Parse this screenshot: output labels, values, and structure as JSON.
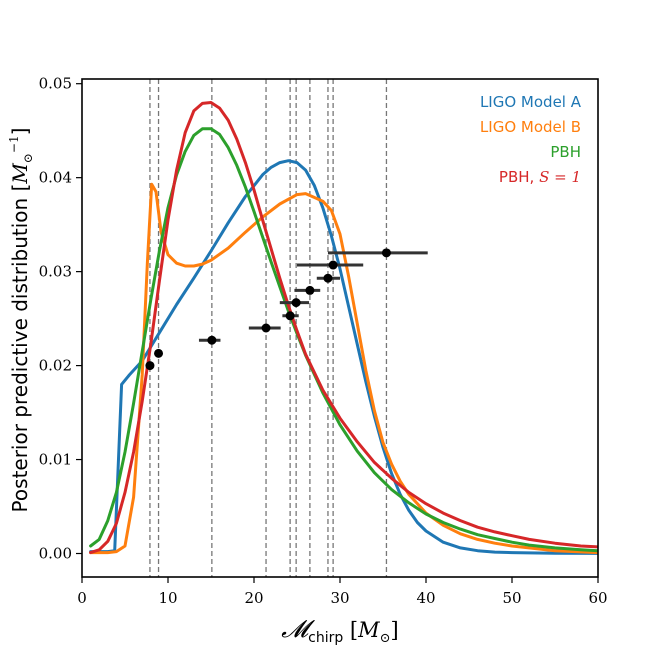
{
  "chart_data": {
    "type": "line",
    "xlabel": "𝓜chirp [M⊙]",
    "xlabel_main": "𝓜",
    "xlabel_sub": "chirp",
    "xlabel_unit_open": " [",
    "xlabel_unit": "M",
    "xlabel_unit_sub": "⊙",
    "xlabel_unit_close": "]",
    "ylabel": "Posterior predictive distribution [M⊙⁻¹]",
    "ylabel_main": "Posterior predictive distribution [",
    "ylabel_unit": "M",
    "ylabel_unit_sub": "⊙",
    "ylabel_unit_sup": "−1",
    "ylabel_unit_close": "]",
    "xlim": [
      0,
      60
    ],
    "ylim": [
      -0.0025,
      0.0505
    ],
    "xticks": [
      0,
      10,
      20,
      30,
      40,
      50,
      60
    ],
    "yticks": [
      0.0,
      0.01,
      0.02,
      0.03,
      0.04,
      0.05
    ],
    "ytick_labels": [
      "0.00",
      "0.01",
      "0.02",
      "0.03",
      "0.04",
      "0.05"
    ],
    "legend_position": "top-right",
    "series": [
      {
        "name": "LIGO Model A",
        "color": "#1f77b4",
        "x": [
          1,
          2,
          3,
          3.8,
          4.6,
          5.5,
          7,
          9,
          11,
          13,
          15,
          17,
          19,
          21,
          22,
          23,
          24,
          25,
          26,
          27,
          28,
          29,
          30,
          31,
          32,
          33,
          34,
          35,
          36,
          37,
          38,
          39,
          40,
          42,
          44,
          46,
          48,
          50,
          55,
          60
        ],
        "y": [
          0.0002,
          0.0002,
          0.0002,
          0.0003,
          0.018,
          0.019,
          0.0205,
          0.0235,
          0.0265,
          0.0293,
          0.0322,
          0.0352,
          0.038,
          0.0403,
          0.0411,
          0.0416,
          0.0418,
          0.0416,
          0.0408,
          0.0392,
          0.0368,
          0.0338,
          0.0303,
          0.0263,
          0.0223,
          0.0183,
          0.0146,
          0.0113,
          0.0085,
          0.0063,
          0.0046,
          0.0033,
          0.0024,
          0.0012,
          0.0006,
          0.0003,
          0.00015,
          0.0001,
          3e-05,
          1e-05
        ]
      },
      {
        "name": "LIGO Model B",
        "color": "#ff7f0e",
        "x": [
          1,
          2,
          3,
          4,
          5,
          6,
          7,
          7.6,
          8.1,
          8.6,
          9.2,
          10,
          11,
          12,
          13,
          14,
          15,
          17,
          19,
          21,
          23,
          25,
          26,
          27,
          28,
          29,
          30,
          31,
          32,
          33,
          34,
          35,
          36,
          37,
          38,
          40,
          42,
          44,
          46,
          48,
          50,
          55,
          60
        ],
        "y": [
          0.0001,
          0.0001,
          0.0001,
          0.0002,
          0.0008,
          0.006,
          0.019,
          0.031,
          0.0393,
          0.0385,
          0.0342,
          0.0318,
          0.0309,
          0.0306,
          0.0306,
          0.0308,
          0.0312,
          0.0325,
          0.0342,
          0.0358,
          0.0372,
          0.0382,
          0.0383,
          0.0379,
          0.0375,
          0.0365,
          0.034,
          0.0295,
          0.0245,
          0.0195,
          0.0152,
          0.0118,
          0.0095,
          0.0077,
          0.0063,
          0.0043,
          0.003,
          0.0021,
          0.0015,
          0.0011,
          0.0008,
          0.0003,
          0.0001
        ]
      },
      {
        "name": "PBH",
        "color": "#2ca02c",
        "x": [
          1,
          2,
          3,
          4,
          5,
          6,
          7,
          8,
          9,
          10,
          11,
          12,
          13,
          14,
          15,
          16,
          17,
          18,
          19,
          20,
          21,
          22,
          23,
          24,
          25,
          26,
          28,
          30,
          32,
          34,
          36,
          38,
          40,
          42,
          44,
          46,
          48,
          50,
          52,
          55,
          58,
          60
        ],
        "y": [
          0.0008,
          0.0015,
          0.0035,
          0.0065,
          0.0108,
          0.016,
          0.0215,
          0.027,
          0.0322,
          0.0368,
          0.0403,
          0.0428,
          0.0445,
          0.0452,
          0.0452,
          0.0446,
          0.0432,
          0.0413,
          0.039,
          0.0364,
          0.0337,
          0.031,
          0.0284,
          0.0258,
          0.0234,
          0.0211,
          0.0171,
          0.0137,
          0.0109,
          0.0086,
          0.0068,
          0.0054,
          0.0042,
          0.0033,
          0.0026,
          0.002,
          0.0016,
          0.0012,
          0.0009,
          0.0006,
          0.0004,
          0.0003
        ]
      },
      {
        "name": "PBH, S = 1",
        "name_prefix": "PBH, ",
        "name_math": "S = 1",
        "color": "#d62728",
        "x": [
          1,
          2,
          3,
          4,
          5,
          6,
          7,
          8,
          9,
          10,
          11,
          12,
          13,
          14,
          15,
          16,
          17,
          18,
          19,
          20,
          21,
          22,
          23,
          24,
          25,
          26,
          28,
          30,
          32,
          34,
          36,
          38,
          40,
          42,
          44,
          46,
          48,
          50,
          52,
          55,
          58,
          60
        ],
        "y": [
          0.0001,
          0.0004,
          0.0013,
          0.0032,
          0.0065,
          0.0108,
          0.0162,
          0.0223,
          0.029,
          0.0355,
          0.0408,
          0.0448,
          0.0471,
          0.0479,
          0.048,
          0.0474,
          0.0461,
          0.0441,
          0.0416,
          0.0387,
          0.0355,
          0.0324,
          0.0293,
          0.0264,
          0.0237,
          0.0212,
          0.0174,
          0.0144,
          0.0119,
          0.0097,
          0.008,
          0.0065,
          0.0053,
          0.0043,
          0.0035,
          0.0028,
          0.0023,
          0.0019,
          0.0015,
          0.0011,
          0.0008,
          0.0007
        ]
      }
    ],
    "vertical_lines": [
      7.9,
      8.9,
      15.1,
      21.4,
      24.2,
      24.9,
      26.5,
      28.6,
      29.2,
      35.4
    ],
    "observations": [
      {
        "x": 7.9,
        "xerr_low": 0.3,
        "xerr_high": 0.3,
        "y": 0.02
      },
      {
        "x": 8.9,
        "xerr_low": 0.3,
        "xerr_high": 0.3,
        "y": 0.0213
      },
      {
        "x": 15.1,
        "xerr_low": 1.5,
        "xerr_high": 1.0,
        "y": 0.0227
      },
      {
        "x": 21.4,
        "xerr_low": 2.0,
        "xerr_high": 1.7,
        "y": 0.024
      },
      {
        "x": 24.2,
        "xerr_low": 0.9,
        "xerr_high": 1.0,
        "y": 0.0253
      },
      {
        "x": 24.9,
        "xerr_low": 1.9,
        "xerr_high": 1.5,
        "y": 0.0267
      },
      {
        "x": 26.5,
        "xerr_low": 1.8,
        "xerr_high": 1.2,
        "y": 0.028
      },
      {
        "x": 28.6,
        "xerr_low": 1.3,
        "xerr_high": 1.4,
        "y": 0.0293
      },
      {
        "x": 29.2,
        "xerr_low": 4.2,
        "xerr_high": 3.5,
        "y": 0.0307
      },
      {
        "x": 35.4,
        "xerr_low": 6.8,
        "xerr_high": 4.8,
        "y": 0.032
      }
    ],
    "marker_color": "#000000",
    "errorbar_color": "#333333",
    "vline_color": "#777777"
  }
}
